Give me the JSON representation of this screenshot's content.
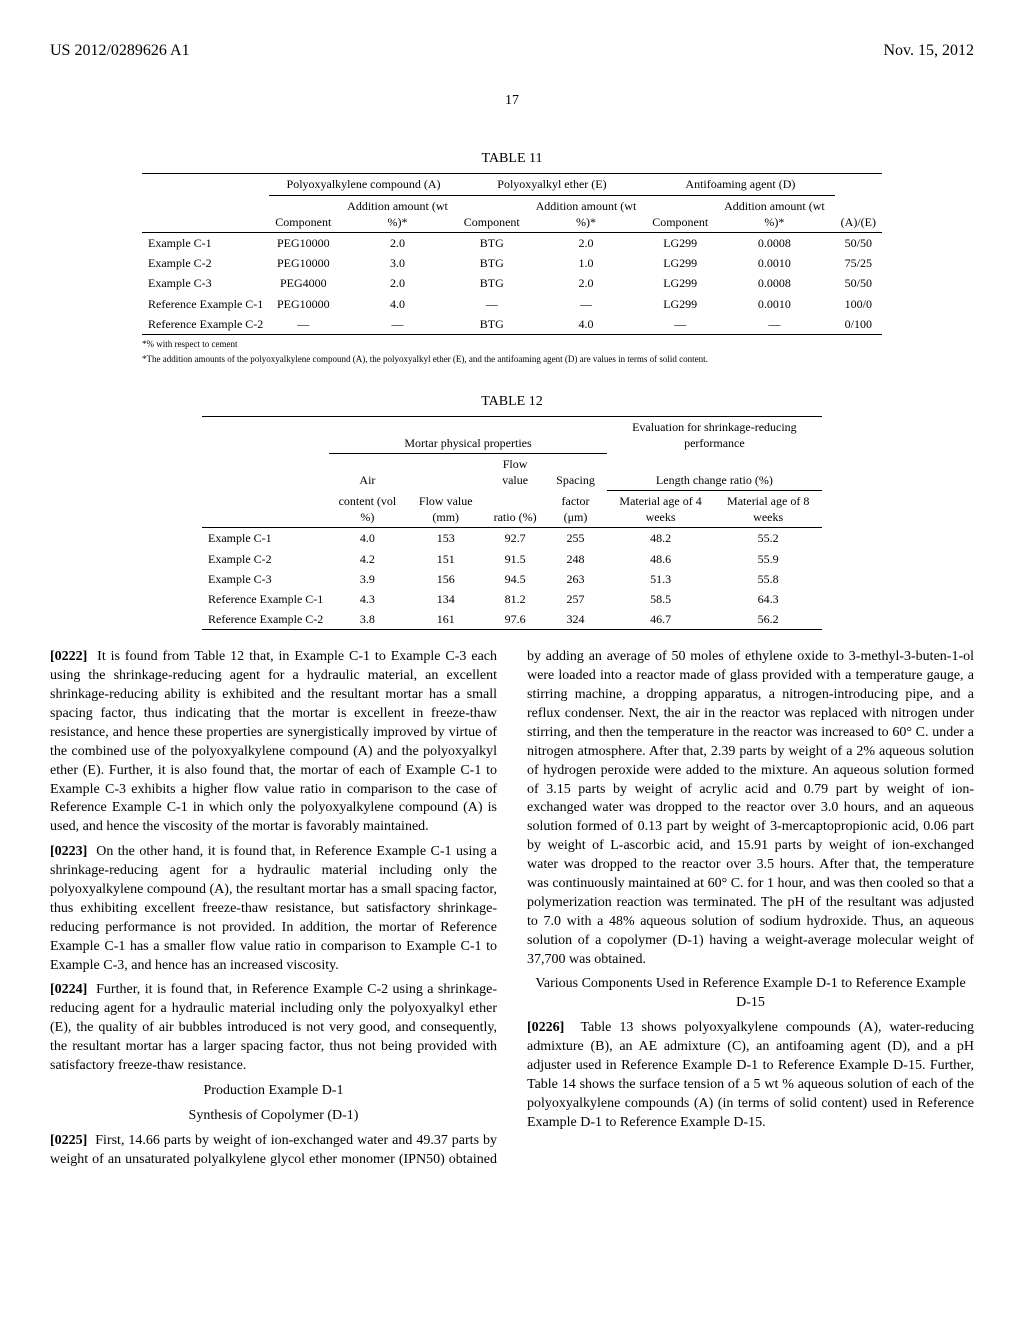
{
  "header": {
    "patent_id": "US 2012/0289626 A1",
    "date": "Nov. 15, 2012"
  },
  "page_number": "17",
  "table11": {
    "caption": "TABLE 11",
    "group_headers": {
      "A": "Polyoxyalkylene compound (A)",
      "E": "Polyoxyalkyl ether (E)",
      "D": "Antifoaming agent (D)"
    },
    "sub_headers": {
      "component": "Component",
      "addition": "Addition amount (wt %)*",
      "ratio": "(A)/(E)"
    },
    "rows": [
      {
        "label": "Example C-1",
        "A_comp": "PEG10000",
        "A_amt": "2.0",
        "E_comp": "BTG",
        "E_amt": "2.0",
        "D_comp": "LG299",
        "D_amt": "0.0008",
        "ratio": "50/50"
      },
      {
        "label": "Example C-2",
        "A_comp": "PEG10000",
        "A_amt": "3.0",
        "E_comp": "BTG",
        "E_amt": "1.0",
        "D_comp": "LG299",
        "D_amt": "0.0010",
        "ratio": "75/25"
      },
      {
        "label": "Example C-3",
        "A_comp": "PEG4000",
        "A_amt": "2.0",
        "E_comp": "BTG",
        "E_amt": "2.0",
        "D_comp": "LG299",
        "D_amt": "0.0008",
        "ratio": "50/50"
      },
      {
        "label": "Reference Example C-1",
        "A_comp": "PEG10000",
        "A_amt": "4.0",
        "E_comp": "—",
        "E_amt": "—",
        "D_comp": "LG299",
        "D_amt": "0.0010",
        "ratio": "100/0"
      },
      {
        "label": "Reference Example C-2",
        "A_comp": "—",
        "A_amt": "—",
        "E_comp": "BTG",
        "E_amt": "4.0",
        "D_comp": "—",
        "D_amt": "—",
        "ratio": "0/100"
      }
    ],
    "footnotes": [
      "*% with respect to cement",
      "*The addition amounts of the polyoxyalkylene compound (A), the polyoxyalkyl ether (E), and the antifoaming agent (D) are values in terms of solid content."
    ]
  },
  "table12": {
    "caption": "TABLE 12",
    "group_headers": {
      "mortar": "Mortar physical properties",
      "shrink": "Evaluation for shrinkage-reducing performance",
      "length": "Length change ratio (%)"
    },
    "sub_headers": {
      "air": "Air",
      "flow_mm": "Flow value",
      "flow_ratio": "Flow value",
      "spacing": "Spacing",
      "air2": "content (vol %)",
      "flow_mm2": "Flow value (mm)",
      "flow_ratio2": "ratio (%)",
      "spacing2": "factor (μm)",
      "age4": "Material age of 4 weeks",
      "age8": "Material age of 8 weeks"
    },
    "rows": [
      {
        "label": "Example C-1",
        "air": "4.0",
        "flow_mm": "153",
        "ratio": "92.7",
        "spacing": "255",
        "w4": "48.2",
        "w8": "55.2"
      },
      {
        "label": "Example C-2",
        "air": "4.2",
        "flow_mm": "151",
        "ratio": "91.5",
        "spacing": "248",
        "w4": "48.6",
        "w8": "55.9"
      },
      {
        "label": "Example C-3",
        "air": "3.9",
        "flow_mm": "156",
        "ratio": "94.5",
        "spacing": "263",
        "w4": "51.3",
        "w8": "55.8"
      },
      {
        "label": "Reference Example C-1",
        "air": "4.3",
        "flow_mm": "134",
        "ratio": "81.2",
        "spacing": "257",
        "w4": "58.5",
        "w8": "64.3"
      },
      {
        "label": "Reference Example C-2",
        "air": "3.8",
        "flow_mm": "161",
        "ratio": "97.6",
        "spacing": "324",
        "w4": "46.7",
        "w8": "56.2"
      }
    ]
  },
  "body": {
    "p0222_num": "[0222]",
    "p0222": "It is found from Table 12 that, in Example C-1 to Example C-3 each using the shrinkage-reducing agent for a hydraulic material, an excellent shrinkage-reducing ability is exhibited and the resultant mortar has a small spacing factor, thus indicating that the mortar is excellent in freeze-thaw resistance, and hence these properties are synergistically improved by virtue of the combined use of the polyoxyalkylene compound (A) and the polyoxyalkyl ether (E). Further, it is also found that, the mortar of each of Example C-1 to Example C-3 exhibits a higher flow value ratio in comparison to the case of Reference Example C-1 in which only the polyoxyalkylene compound (A) is used, and hence the viscosity of the mortar is favorably maintained.",
    "p0223_num": "[0223]",
    "p0223": "On the other hand, it is found that, in Reference Example C-1 using a shrinkage-reducing agent for a hydraulic material including only the polyoxyalkylene compound (A), the resultant mortar has a small spacing factor, thus exhibiting excellent freeze-thaw resistance, but satisfactory shrinkage-reducing performance is not provided. In addition, the mortar of Reference Example C-1 has a smaller flow value ratio in comparison to Example C-1 to Example C-3, and hence has an increased viscosity.",
    "p0224_num": "[0224]",
    "p0224": "Further, it is found that, in Reference Example C-2 using a shrinkage-reducing agent for a hydraulic material including only the polyoxyalkyl ether (E), the quality of air bubbles introduced is not very good, and consequently, the resultant mortar has a larger spacing factor, thus not being provided with satisfactory freeze-thaw resistance.",
    "prod_ex": "Production Example D-1",
    "synth": "Synthesis of Copolymer (D-1)",
    "p0225_num": "[0225]",
    "p0225": "First, 14.66 parts by weight of ion-exchanged water and 49.37 parts by weight of an unsaturated polyalkylene glycol ether monomer (IPN50) obtained by adding an average of 50 moles of ethylene oxide to 3-methyl-3-buten-1-ol were loaded into a reactor made of glass provided with a temperature gauge, a stirring machine, a dropping apparatus, a nitrogen-introducing pipe, and a reflux condenser. Next, the air in the reactor was replaced with nitrogen under stirring, and then the temperature in the reactor was increased to 60° C. under a nitrogen atmosphere. After that, 2.39 parts by weight of a 2% aqueous solution of hydrogen peroxide were added to the mixture. An aqueous solution formed of 3.15 parts by weight of acrylic acid and 0.79 part by weight of ion-exchanged water was dropped to the reactor over 3.0 hours, and an aqueous solution formed of 0.13 part by weight of 3-mercaptopropionic acid, 0.06 part by weight of L-ascorbic acid, and 15.91 parts by weight of ion-exchanged water was dropped to the reactor over 3.5 hours. After that, the temperature was continuously maintained at 60° C. for 1 hour, and was then cooled so that a polymerization reaction was terminated. The pH of the resultant was adjusted to 7.0 with a 48% aqueous solution of sodium hydroxide. Thus, an aqueous solution of a copolymer (D-1) having a weight-average molecular weight of 37,700 was obtained.",
    "various": "Various Components Used in Reference Example D-1 to Reference Example D-15",
    "p0226_num": "[0226]",
    "p0226": "Table 13 shows polyoxyalkylene compounds (A), water-reducing admixture (B), an AE admixture (C), an antifoaming agent (D), and a pH adjuster used in Reference Example D-1 to Reference Example D-15. Further, Table 14 shows the surface tension of a 5 wt % aqueous solution of each of the polyoxyalkylene compounds (A) (in terms of solid content) used in Reference Example D-1 to Reference Example D-15."
  }
}
